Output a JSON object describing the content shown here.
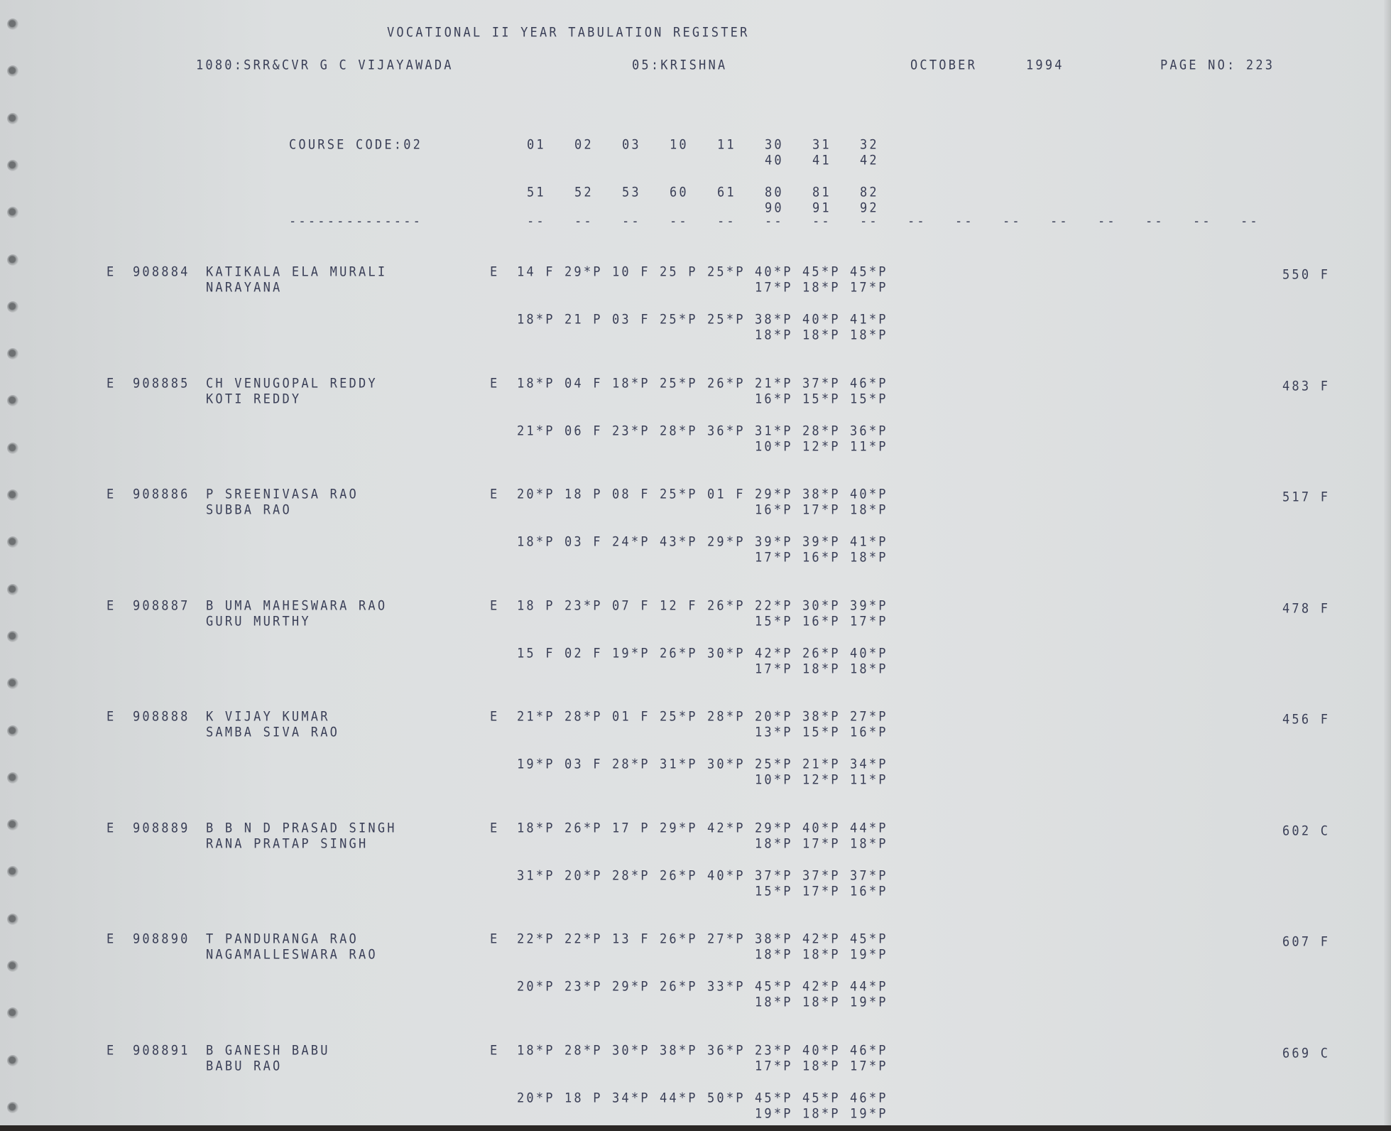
{
  "header": {
    "title": "VOCATIONAL II YEAR TABULATION REGISTER",
    "college": "1080:SRR&CVR G C VIJAYAWADA",
    "district": "05:KRISHNA",
    "month": "OCTOBER",
    "year": "1994",
    "page": "PAGE NO: 223"
  },
  "course": {
    "label": "COURSE CODE:02",
    "codes_row1": [
      "01",
      "02",
      "03",
      "10",
      "11",
      "30",
      "31",
      "32"
    ],
    "codes_row1b": [
      "40",
      "41",
      "42"
    ],
    "codes_row2": [
      "51",
      "52",
      "53",
      "60",
      "61",
      "80",
      "81",
      "82"
    ],
    "codes_row2b": [
      "90",
      "91",
      "92"
    ],
    "long_dash": "--------------",
    "short_dash": "--",
    "dash_count": 16
  },
  "records": [
    {
      "prefix": "E",
      "reg": "908884",
      "name1": "KATIKALA ELA MURALI",
      "name2": "NARAYANA",
      "status": "E",
      "r1": [
        "14 F",
        "29*P",
        "10 F",
        "25 P",
        "25*P",
        "40*P",
        "45*P",
        "45*P"
      ],
      "r1b": [
        "17*P",
        "18*P",
        "17*P"
      ],
      "r2": [
        "18*P",
        "21 P",
        "03 F",
        "25*P",
        "25*P",
        "38*P",
        "40*P",
        "41*P"
      ],
      "r2b": [
        "18*P",
        "18*P",
        "18*P"
      ],
      "total": "550 F"
    },
    {
      "prefix": "E",
      "reg": "908885",
      "name1": "CH VENUGOPAL REDDY",
      "name2": "KOTI REDDY",
      "status": "E",
      "r1": [
        "18*P",
        "04 F",
        "18*P",
        "25*P",
        "26*P",
        "21*P",
        "37*P",
        "46*P"
      ],
      "r1b": [
        "16*P",
        "15*P",
        "15*P"
      ],
      "r2": [
        "21*P",
        "06 F",
        "23*P",
        "28*P",
        "36*P",
        "31*P",
        "28*P",
        "36*P"
      ],
      "r2b": [
        "10*P",
        "12*P",
        "11*P"
      ],
      "total": "483 F"
    },
    {
      "prefix": "E",
      "reg": "908886",
      "name1": "P SREENIVASA RAO",
      "name2": "SUBBA RAO",
      "status": "E",
      "r1": [
        "20*P",
        "18 P",
        "08 F",
        "25*P",
        "01 F",
        "29*P",
        "38*P",
        "40*P"
      ],
      "r1b": [
        "16*P",
        "17*P",
        "18*P"
      ],
      "r2": [
        "18*P",
        "03 F",
        "24*P",
        "43*P",
        "29*P",
        "39*P",
        "39*P",
        "41*P"
      ],
      "r2b": [
        "17*P",
        "16*P",
        "18*P"
      ],
      "total": "517 F"
    },
    {
      "prefix": "E",
      "reg": "908887",
      "name1": "B UMA MAHESWARA RAO",
      "name2": "GURU MURTHY",
      "status": "E",
      "r1": [
        "18 P",
        "23*P",
        "07 F",
        "12 F",
        "26*P",
        "22*P",
        "30*P",
        "39*P"
      ],
      "r1b": [
        "15*P",
        "16*P",
        "17*P"
      ],
      "r2": [
        "15 F",
        "02 F",
        "19*P",
        "26*P",
        "30*P",
        "42*P",
        "26*P",
        "40*P"
      ],
      "r2b": [
        "17*P",
        "18*P",
        "18*P"
      ],
      "total": "478 F"
    },
    {
      "prefix": "E",
      "reg": "908888",
      "name1": "K VIJAY KUMAR",
      "name2": "SAMBA SIVA RAO",
      "status": "E",
      "r1": [
        "21*P",
        "28*P",
        "01 F",
        "25*P",
        "28*P",
        "20*P",
        "38*P",
        "27*P"
      ],
      "r1b": [
        "13*P",
        "15*P",
        "16*P"
      ],
      "r2": [
        "19*P",
        "03 F",
        "28*P",
        "31*P",
        "30*P",
        "25*P",
        "21*P",
        "34*P"
      ],
      "r2b": [
        "10*P",
        "12*P",
        "11*P"
      ],
      "total": "456 F"
    },
    {
      "prefix": "E",
      "reg": "908889",
      "name1": "B B N D PRASAD SINGH",
      "name2": "RANA PRATAP SINGH",
      "status": "E",
      "r1": [
        "18*P",
        "26*P",
        "17 P",
        "29*P",
        "42*P",
        "29*P",
        "40*P",
        "44*P"
      ],
      "r1b": [
        "18*P",
        "17*P",
        "18*P"
      ],
      "r2": [
        "31*P",
        "20*P",
        "28*P",
        "26*P",
        "40*P",
        "37*P",
        "37*P",
        "37*P"
      ],
      "r2b": [
        "15*P",
        "17*P",
        "16*P"
      ],
      "total": "602 C"
    },
    {
      "prefix": "E",
      "reg": "908890",
      "name1": "T PANDURANGA RAO",
      "name2": "NAGAMALLESWARA RAO",
      "status": "E",
      "r1": [
        "22*P",
        "22*P",
        "13 F",
        "26*P",
        "27*P",
        "38*P",
        "42*P",
        "45*P"
      ],
      "r1b": [
        "18*P",
        "18*P",
        "19*P"
      ],
      "r2": [
        "20*P",
        "23*P",
        "29*P",
        "26*P",
        "33*P",
        "45*P",
        "42*P",
        "44*P"
      ],
      "r2b": [
        "18*P",
        "18*P",
        "19*P"
      ],
      "total": "607 F"
    },
    {
      "prefix": "E",
      "reg": "908891",
      "name1": "B GANESH BABU",
      "name2": "BABU RAO",
      "status": "E",
      "r1": [
        "18*P",
        "28*P",
        "30*P",
        "38*P",
        "36*P",
        "23*P",
        "40*P",
        "46*P"
      ],
      "r1b": [
        "17*P",
        "18*P",
        "17*P"
      ],
      "r2": [
        "20*P",
        "18 P",
        "34*P",
        "44*P",
        "50*P",
        "45*P",
        "45*P",
        "46*P"
      ],
      "r2b": [
        "19*P",
        "18*P",
        "19*P"
      ],
      "total": "669 C"
    }
  ]
}
